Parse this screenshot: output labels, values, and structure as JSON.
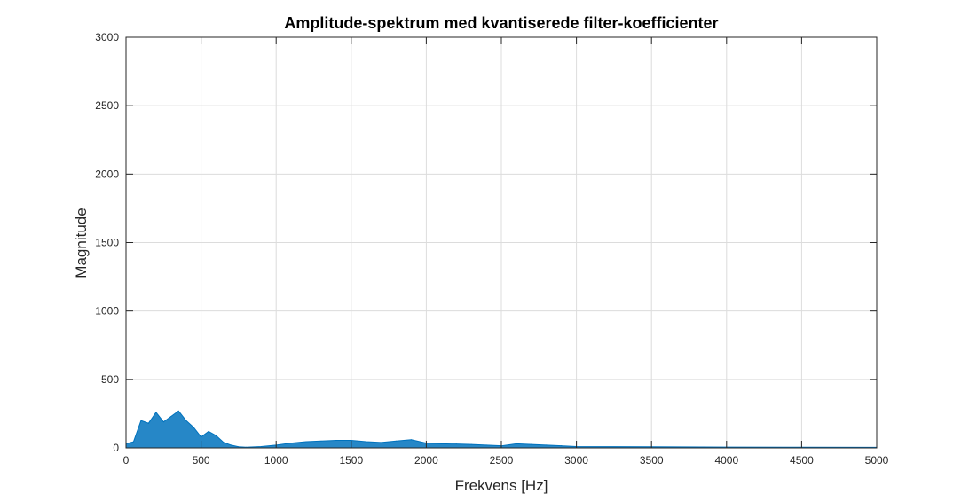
{
  "chart_data": {
    "type": "line",
    "title": "Amplitude-spektrum med kvantiserede filter-koefficienter",
    "xlabel": "Frekvens [Hz]",
    "ylabel": "Magnitude",
    "xlim": [
      0,
      5000
    ],
    "ylim": [
      0,
      3000
    ],
    "xticks": [
      0,
      500,
      1000,
      1500,
      2000,
      2500,
      3000,
      3500,
      4000,
      4500,
      5000
    ],
    "yticks": [
      0,
      500,
      1000,
      1500,
      2000,
      2500,
      3000
    ],
    "grid": true,
    "series_color": "#0072BD",
    "series": [
      {
        "x": [
          0,
          50,
          100,
          150,
          200,
          250,
          300,
          350,
          400,
          450,
          500,
          550,
          600,
          650,
          700,
          750,
          800,
          900,
          1000,
          1100,
          1200,
          1300,
          1400,
          1500,
          1600,
          1700,
          1800,
          1900,
          2000,
          2100,
          2200,
          2300,
          2400,
          2500,
          2600,
          2700,
          2800,
          2900,
          3000,
          3500,
          4000,
          4500,
          5000
        ],
        "y": [
          30,
          45,
          200,
          180,
          260,
          190,
          230,
          270,
          200,
          150,
          80,
          120,
          90,
          40,
          20,
          8,
          5,
          10,
          20,
          35,
          45,
          50,
          55,
          55,
          45,
          40,
          50,
          60,
          35,
          30,
          28,
          25,
          20,
          15,
          30,
          25,
          20,
          15,
          10,
          8,
          6,
          5,
          4
        ]
      }
    ]
  }
}
